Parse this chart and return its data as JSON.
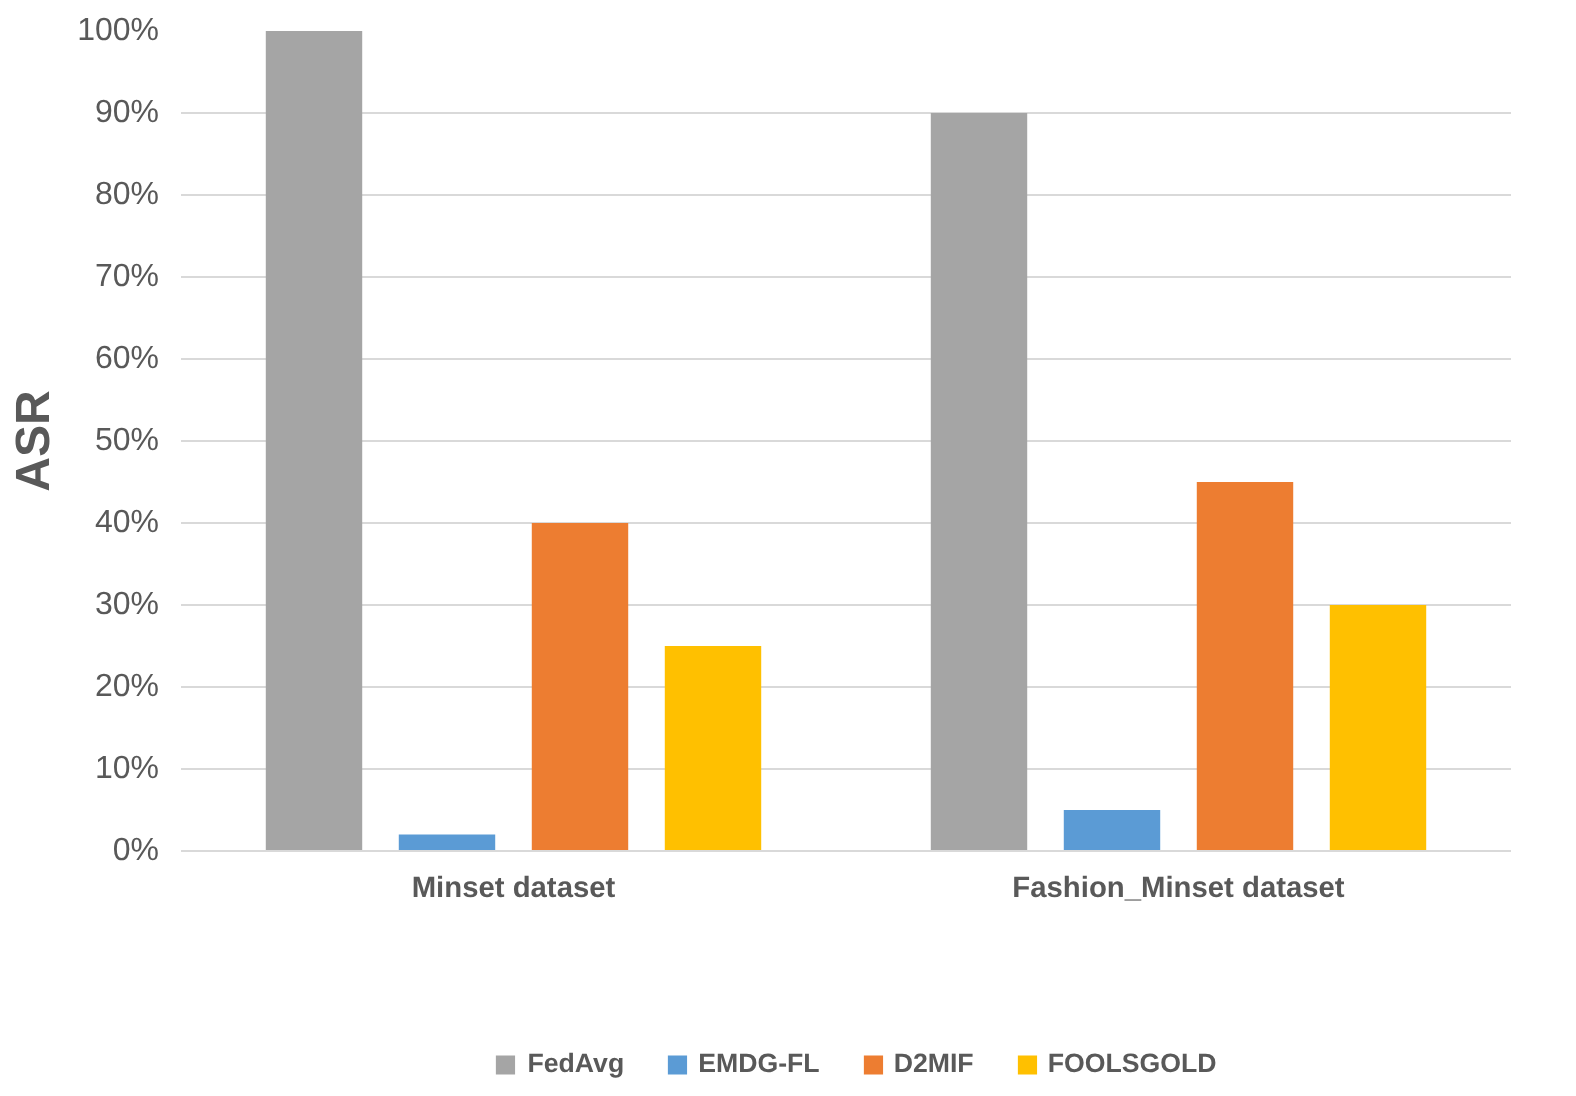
{
  "chart_data": {
    "type": "bar",
    "ylabel": "ASR",
    "categories": [
      "Minset dataset",
      "Fashion_Minset dataset"
    ],
    "series": [
      {
        "name": "FedAvg",
        "color": "#a5a5a5",
        "values": [
          100,
          90
        ]
      },
      {
        "name": "EMDG-FL",
        "color": "#5b9bd5",
        "values": [
          2,
          5
        ]
      },
      {
        "name": "D2MIF",
        "color": "#ed7d31",
        "values": [
          40,
          45
        ]
      },
      {
        "name": "FOOLSGOLD",
        "color": "#ffc000",
        "values": [
          25,
          30
        ]
      }
    ],
    "ylim": [
      0,
      100
    ],
    "yticks": [
      {
        "value": 0,
        "label": "0%"
      },
      {
        "value": 10,
        "label": "10%"
      },
      {
        "value": 20,
        "label": "20%"
      },
      {
        "value": 30,
        "label": "30%"
      },
      {
        "value": 40,
        "label": "40%"
      },
      {
        "value": 50,
        "label": "50%"
      },
      {
        "value": 60,
        "label": "60%"
      },
      {
        "value": 70,
        "label": "70%"
      },
      {
        "value": 80,
        "label": "80%"
      },
      {
        "value": 90,
        "label": "90%"
      },
      {
        "value": 100,
        "label": "100%"
      }
    ],
    "grid": "y",
    "legend": "bottom"
  }
}
